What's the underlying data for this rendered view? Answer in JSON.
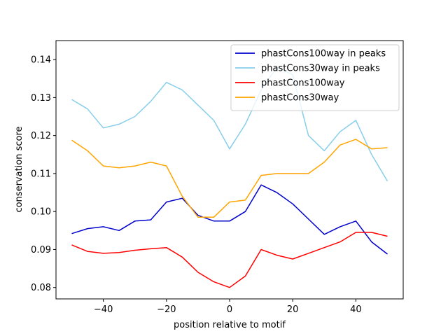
{
  "chart_data": {
    "type": "line",
    "xlabel": "position relative to motif",
    "ylabel": "conservation score",
    "xlim": [
      -55,
      55
    ],
    "ylim": [
      0.077,
      0.145
    ],
    "x_ticks": [
      -40,
      -20,
      0,
      20,
      40
    ],
    "y_ticks": [
      0.08,
      0.09,
      0.1,
      0.11,
      0.12,
      0.13,
      0.14
    ],
    "x_tick_labels": [
      "−40",
      "−20",
      "0",
      "20",
      "40"
    ],
    "y_tick_labels": [
      "0.08",
      "0.09",
      "0.10",
      "0.11",
      "0.12",
      "0.13",
      "0.14"
    ],
    "grid": false,
    "legend_position": "top-right",
    "x": [
      -50,
      -45,
      -40,
      -35,
      -30,
      -25,
      -20,
      -15,
      -10,
      -5,
      0,
      5,
      10,
      15,
      20,
      25,
      30,
      35,
      40,
      45,
      50
    ],
    "series": [
      {
        "name": "phastCons100way in peaks",
        "color": "#0000cc",
        "values": [
          0.0942,
          0.0955,
          0.096,
          0.095,
          0.0975,
          0.0978,
          0.1025,
          0.1035,
          0.099,
          0.0975,
          0.0975,
          0.1,
          0.107,
          0.105,
          0.102,
          0.098,
          0.094,
          0.096,
          0.0975,
          0.092,
          0.0888
        ]
      },
      {
        "name": "phastCons30way in peaks",
        "color": "#87ceeb",
        "values": [
          0.1295,
          0.127,
          0.122,
          0.123,
          0.125,
          0.129,
          0.134,
          0.132,
          0.128,
          0.124,
          0.1165,
          0.123,
          0.132,
          0.138,
          0.136,
          0.12,
          0.116,
          0.121,
          0.124,
          0.115,
          0.108
        ]
      },
      {
        "name": "phastCons100way",
        "color": "#ff0000",
        "values": [
          0.0912,
          0.0895,
          0.089,
          0.0892,
          0.0898,
          0.0902,
          0.0905,
          0.088,
          0.084,
          0.0815,
          0.08,
          0.083,
          0.09,
          0.0885,
          0.0875,
          0.089,
          0.0905,
          0.092,
          0.0945,
          0.0945,
          0.0935
        ]
      },
      {
        "name": "phastCons30way",
        "color": "#ffa500",
        "values": [
          0.1188,
          0.116,
          0.112,
          0.1115,
          0.112,
          0.113,
          0.112,
          0.104,
          0.0985,
          0.0985,
          0.1025,
          0.103,
          0.1095,
          0.11,
          0.11,
          0.11,
          0.113,
          0.1175,
          0.119,
          0.1165,
          0.1168
        ]
      }
    ]
  }
}
